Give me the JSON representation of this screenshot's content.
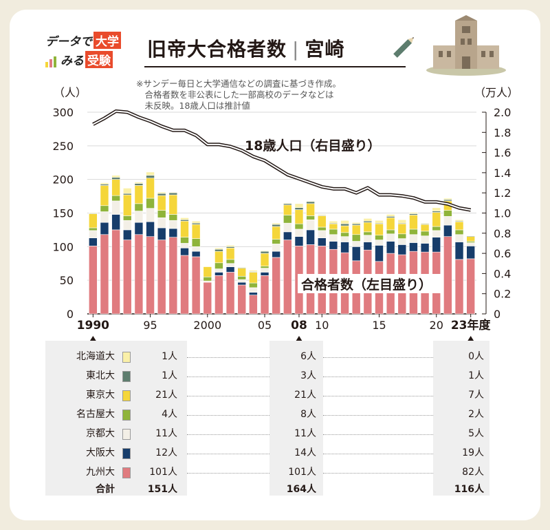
{
  "header": {
    "logo_line1": "データで",
    "logo_word1": "大学",
    "logo_line2": "みる",
    "logo_word2": "受験",
    "title": "旧帝大合格者数",
    "title_sep": "|",
    "title_region": "宮崎",
    "note": "※サンデー毎日と大学通信などの調査に基づき作成。\n　合格者数を非公表にした一部高校のデータなどは\n　未反映。18歳人口は推計値"
  },
  "colors": {
    "kyushu": "#e07b7f",
    "osaka": "#173d6b",
    "kyoto": "#f3efe6",
    "nagoya": "#8fb43a",
    "tokyo": "#f5d63a",
    "tohoku": "#5d7d6e",
    "hokkaido": "#faf0a8",
    "population_line": "#231815",
    "background": "#f1ecde",
    "table_bg": "#efefef"
  },
  "chart_data": {
    "type": "bar",
    "stacked": true,
    "x": [
      1990,
      1991,
      1992,
      1993,
      1994,
      1995,
      1996,
      1997,
      1998,
      1999,
      2000,
      2001,
      2002,
      2003,
      2004,
      2005,
      2006,
      2007,
      2008,
      2009,
      2010,
      2011,
      2012,
      2013,
      2014,
      2015,
      2016,
      2017,
      2018,
      2019,
      2020,
      2021,
      2022,
      2023
    ],
    "series": [
      {
        "name": "九州大",
        "color_key": "kyushu",
        "values": [
          101,
          118,
          125,
          110,
          118,
          115,
          110,
          114,
          87,
          85,
          47,
          57,
          62,
          43,
          28,
          57,
          84,
          110,
          101,
          103,
          101,
          96,
          91,
          79,
          95,
          78,
          90,
          88,
          93,
          92,
          92,
          115,
          81,
          82
        ]
      },
      {
        "name": "大阪大",
        "color_key": "osaka",
        "values": [
          12,
          18,
          23,
          15,
          18,
          22,
          18,
          13,
          11,
          8,
          0,
          5,
          8,
          4,
          4,
          5,
          9,
          12,
          14,
          22,
          12,
          12,
          16,
          21,
          12,
          24,
          18,
          15,
          13,
          13,
          22,
          17,
          26,
          19
        ]
      },
      {
        "name": "京都大",
        "color_key": "kyoto",
        "values": [
          11,
          16,
          20,
          14,
          17,
          20,
          15,
          12,
          7,
          7,
          2,
          5,
          5,
          4,
          7,
          6,
          11,
          13,
          11,
          15,
          11,
          10,
          8,
          8,
          10,
          8,
          11,
          9,
          12,
          11,
          10,
          13,
          11,
          5
        ]
      },
      {
        "name": "名古屋大",
        "color_key": "nagoya",
        "values": [
          4,
          9,
          8,
          7,
          11,
          15,
          11,
          9,
          9,
          12,
          6,
          9,
          6,
          5,
          7,
          3,
          7,
          12,
          8,
          6,
          5,
          8,
          6,
          10,
          5,
          7,
          6,
          7,
          8,
          7,
          6,
          9,
          7,
          2
        ]
      },
      {
        "name": "東京大",
        "color_key": "tokyo",
        "values": [
          21,
          30,
          24,
          31,
          27,
          30,
          22,
          29,
          24,
          21,
          15,
          17,
          17,
          12,
          16,
          19,
          19,
          15,
          21,
          18,
          17,
          8,
          10,
          14,
          14,
          17,
          18,
          15,
          21,
          10,
          21,
          14,
          12,
          7
        ]
      },
      {
        "name": "東北大",
        "color_key": "tohoku",
        "values": [
          1,
          2,
          3,
          2,
          3,
          4,
          3,
          3,
          2,
          2,
          0,
          3,
          2,
          1,
          1,
          3,
          3,
          2,
          3,
          3,
          1,
          1,
          3,
          2,
          2,
          1,
          2,
          1,
          2,
          1,
          2,
          2,
          1,
          1
        ]
      },
      {
        "name": "北海道大",
        "color_key": "hokkaido",
        "values": [
          1,
          2,
          3,
          8,
          2,
          5,
          2,
          1,
          3,
          3,
          1,
          2,
          2,
          1,
          2,
          1,
          2,
          1,
          6,
          1,
          1,
          3,
          5,
          2,
          4,
          4,
          3,
          5,
          2,
          1,
          5,
          2,
          2,
          0
        ]
      }
    ],
    "population": {
      "name": "18歳人口（右目盛り）",
      "values": [
        1.88,
        1.94,
        2.01,
        2.0,
        1.95,
        1.91,
        1.86,
        1.82,
        1.82,
        1.77,
        1.68,
        1.68,
        1.66,
        1.62,
        1.56,
        1.52,
        1.45,
        1.38,
        1.34,
        1.3,
        1.26,
        1.24,
        1.24,
        1.2,
        1.25,
        1.18,
        1.18,
        1.17,
        1.15,
        1.11,
        1.11,
        1.09,
        1.05,
        1.03
      ]
    },
    "bar_label": "合格者数（左目盛り）",
    "left_unit": "（人）",
    "right_unit": "（万人）",
    "ylim": [
      0,
      300
    ],
    "y2lim": [
      0,
      2.0
    ],
    "left_ticks": [
      "300",
      "250",
      "200",
      "150",
      "100",
      "50",
      "0"
    ],
    "right_ticks": [
      "2.0",
      "1.8",
      "1.6",
      "1.4",
      "1.2",
      "1.0",
      "0.8",
      "0.6",
      "0.4",
      "0.2",
      "0"
    ],
    "x_tick_labels": [
      {
        "year": 1990,
        "label": "1990",
        "bold": true
      },
      {
        "year": 1995,
        "label": "95",
        "bold": false
      },
      {
        "year": 2000,
        "label": "2000",
        "bold": false
      },
      {
        "year": 2005,
        "label": "05",
        "bold": false
      },
      {
        "year": 2008,
        "label": "08",
        "bold": true
      },
      {
        "year": 2010,
        "label": "10",
        "bold": false
      },
      {
        "year": 2015,
        "label": "15",
        "bold": false
      },
      {
        "year": 2020,
        "label": "20",
        "bold": false
      },
      {
        "year": 2023,
        "label": "23年度",
        "bold": true
      }
    ],
    "grid": true
  },
  "table": {
    "universities": [
      "北海道大",
      "東北大",
      "東京大",
      "名古屋大",
      "京都大",
      "大阪大",
      "九州大"
    ],
    "swatch_keys": [
      "hokkaido",
      "tohoku",
      "tokyo",
      "nagoya",
      "kyoto",
      "osaka",
      "kyushu"
    ],
    "total_label": "合計",
    "col1990": [
      "1人",
      "1人",
      "21人",
      "4人",
      "11人",
      "12人",
      "101人"
    ],
    "col2008": [
      "6人",
      "3人",
      "21人",
      "8人",
      "11人",
      "14人",
      "101人"
    ],
    "col2023": [
      "0人",
      "1人",
      "7人",
      "2人",
      "5人",
      "19人",
      "82人"
    ],
    "totals": [
      "151人",
      "164人",
      "116人"
    ]
  }
}
